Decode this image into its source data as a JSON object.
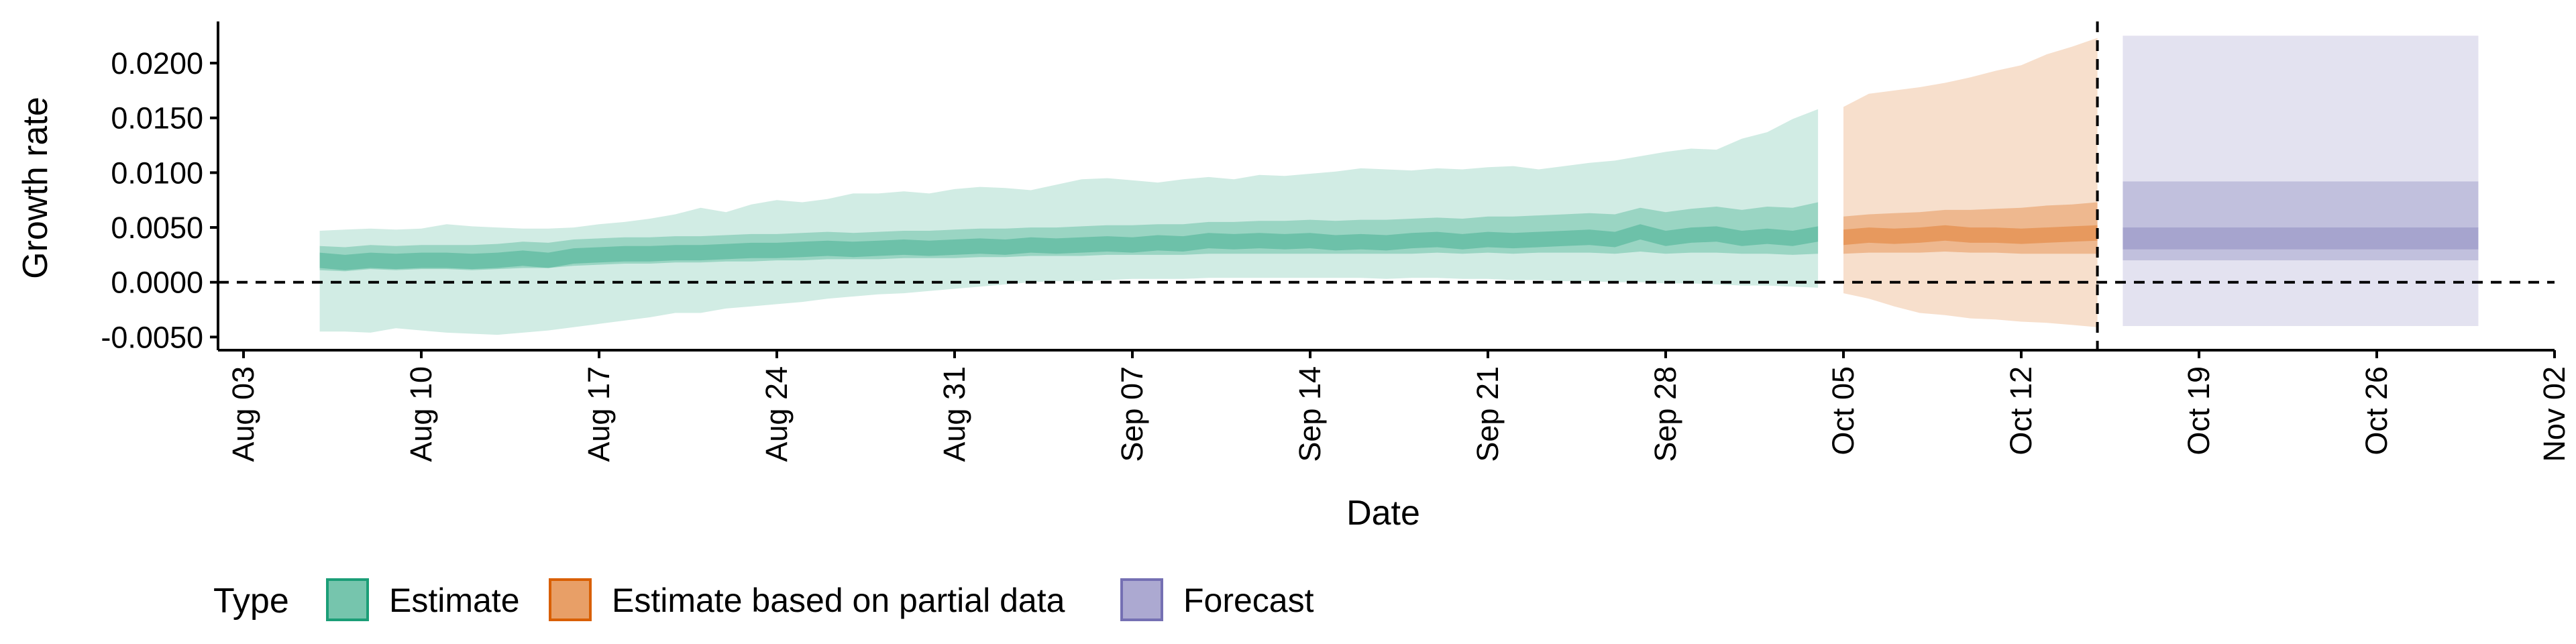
{
  "chart_data": {
    "type": "area",
    "title": "",
    "xlabel": "Date",
    "ylabel": "Growth rate",
    "x_ticks": [
      "Aug 03",
      "Aug 10",
      "Aug 17",
      "Aug 24",
      "Aug 31",
      "Sep 07",
      "Sep 14",
      "Sep 21",
      "Sep 28",
      "Oct 05",
      "Oct 12",
      "Oct 19",
      "Oct 26",
      "Nov 02"
    ],
    "y_ticks": [
      "-0.0050",
      "0.0000",
      "0.0050",
      "0.0100",
      "0.0150",
      "0.0200"
    ],
    "ylim": [
      -0.0062,
      0.0238
    ],
    "xlim": [
      "2020-08-03",
      "2020-11-02"
    ],
    "grid": false,
    "reference_lines": [
      {
        "axis": "y",
        "value": 0,
        "style": "dashed"
      },
      {
        "axis": "x",
        "value": "2020-10-15",
        "style": "dashed"
      }
    ],
    "legend": {
      "title": "Type",
      "position": "bottom",
      "entries": [
        "Estimate",
        "Estimate based on partial data",
        "Forecast"
      ]
    },
    "colors": {
      "Estimate": "#1b9e77",
      "Estimate based on partial data": "#d95f02",
      "Forecast": "#7570b3"
    },
    "series": [
      {
        "name": "Estimate",
        "dates": [
          "2020-08-06",
          "2020-08-07",
          "2020-08-08",
          "2020-08-09",
          "2020-08-10",
          "2020-08-11",
          "2020-08-12",
          "2020-08-13",
          "2020-08-14",
          "2020-08-15",
          "2020-08-16",
          "2020-08-17",
          "2020-08-18",
          "2020-08-19",
          "2020-08-20",
          "2020-08-21",
          "2020-08-22",
          "2020-08-23",
          "2020-08-24",
          "2020-08-25",
          "2020-08-26",
          "2020-08-27",
          "2020-08-28",
          "2020-08-29",
          "2020-08-30",
          "2020-08-31",
          "2020-09-01",
          "2020-09-02",
          "2020-09-03",
          "2020-09-04",
          "2020-09-05",
          "2020-09-06",
          "2020-09-07",
          "2020-09-08",
          "2020-09-09",
          "2020-09-10",
          "2020-09-11",
          "2020-09-12",
          "2020-09-13",
          "2020-09-14",
          "2020-09-15",
          "2020-09-16",
          "2020-09-17",
          "2020-09-18",
          "2020-09-19",
          "2020-09-20",
          "2020-09-21",
          "2020-09-22",
          "2020-09-23",
          "2020-09-24",
          "2020-09-25",
          "2020-09-26",
          "2020-09-27",
          "2020-09-28",
          "2020-09-29",
          "2020-09-30",
          "2020-10-01",
          "2020-10-02",
          "2020-10-03",
          "2020-10-04"
        ],
        "median": [
          0.002,
          0.0018,
          0.002,
          0.0019,
          0.002,
          0.002,
          0.0019,
          0.002,
          0.0022,
          0.002,
          0.0024,
          0.0025,
          0.0026,
          0.0026,
          0.0027,
          0.0027,
          0.0028,
          0.0029,
          0.0029,
          0.003,
          0.0031,
          0.003,
          0.0031,
          0.0032,
          0.0031,
          0.0032,
          0.0033,
          0.0032,
          0.0034,
          0.0033,
          0.0034,
          0.0035,
          0.0034,
          0.0036,
          0.0035,
          0.0038,
          0.0037,
          0.0038,
          0.0037,
          0.0038,
          0.0036,
          0.0037,
          0.0036,
          0.0038,
          0.0039,
          0.0037,
          0.0039,
          0.0038,
          0.0039,
          0.004,
          0.0041,
          0.0039,
          0.0046,
          0.004,
          0.0043,
          0.0044,
          0.004,
          0.0042,
          0.004,
          0.0044
        ],
        "lower_50": [
          0.0011,
          0.001,
          0.0012,
          0.0011,
          0.0012,
          0.0012,
          0.0011,
          0.0012,
          0.0013,
          0.0013,
          0.0015,
          0.0016,
          0.0017,
          0.0017,
          0.0018,
          0.0018,
          0.0019,
          0.0019,
          0.002,
          0.002,
          0.0021,
          0.0021,
          0.0021,
          0.0022,
          0.0022,
          0.0022,
          0.0023,
          0.0023,
          0.0024,
          0.0024,
          0.0024,
          0.0025,
          0.0025,
          0.0025,
          0.0025,
          0.0026,
          0.0026,
          0.0026,
          0.0026,
          0.0026,
          0.0026,
          0.0026,
          0.0026,
          0.0026,
          0.0027,
          0.0026,
          0.0027,
          0.0026,
          0.0027,
          0.0027,
          0.0027,
          0.0026,
          0.0028,
          0.0026,
          0.0027,
          0.0027,
          0.0026,
          0.0026,
          0.0025,
          0.0026
        ],
        "upper_50": [
          0.0033,
          0.0032,
          0.0034,
          0.0033,
          0.0034,
          0.0034,
          0.0034,
          0.0035,
          0.0037,
          0.0036,
          0.0039,
          0.004,
          0.0041,
          0.0041,
          0.0042,
          0.0042,
          0.0043,
          0.0044,
          0.0044,
          0.0045,
          0.0046,
          0.0045,
          0.0046,
          0.0047,
          0.0047,
          0.0048,
          0.0049,
          0.0049,
          0.005,
          0.005,
          0.0051,
          0.0052,
          0.0052,
          0.0053,
          0.0053,
          0.0055,
          0.0055,
          0.0056,
          0.0056,
          0.0057,
          0.0056,
          0.0057,
          0.0057,
          0.0058,
          0.0059,
          0.0058,
          0.006,
          0.006,
          0.0061,
          0.0062,
          0.0063,
          0.0062,
          0.0068,
          0.0064,
          0.0067,
          0.0069,
          0.0066,
          0.0069,
          0.0068,
          0.0073
        ],
        "lower_90": [
          -0.0045,
          -0.0045,
          -0.0046,
          -0.0042,
          -0.0044,
          -0.0046,
          -0.0047,
          -0.0048,
          -0.0046,
          -0.0044,
          -0.0041,
          -0.0038,
          -0.0035,
          -0.0032,
          -0.0028,
          -0.0028,
          -0.0024,
          -0.0022,
          -0.002,
          -0.0018,
          -0.0015,
          -0.0013,
          -0.0011,
          -0.001,
          -0.0008,
          -0.0006,
          -0.0004,
          -0.0002,
          0.0,
          0.0001,
          0.0001,
          0.0002,
          0.0003,
          0.0003,
          0.0003,
          0.0004,
          0.0004,
          0.0004,
          0.0004,
          0.0004,
          0.0004,
          0.0004,
          0.0003,
          0.0004,
          0.0004,
          0.0003,
          0.0003,
          0.0002,
          0.0002,
          0.0001,
          0.0001,
          0.0,
          0.0,
          -0.0001,
          -0.0001,
          -0.0002,
          -0.0003,
          -0.0003,
          -0.0004,
          -0.0005
        ],
        "upper_90": [
          0.0047,
          0.0048,
          0.0049,
          0.0048,
          0.0049,
          0.0053,
          0.0051,
          0.005,
          0.0049,
          0.0049,
          0.005,
          0.0053,
          0.0055,
          0.0058,
          0.0062,
          0.0068,
          0.0064,
          0.0071,
          0.0075,
          0.0073,
          0.0076,
          0.0081,
          0.0081,
          0.0083,
          0.0081,
          0.0085,
          0.0087,
          0.0086,
          0.0084,
          0.0089,
          0.0094,
          0.0095,
          0.0093,
          0.0091,
          0.0094,
          0.0096,
          0.0094,
          0.0098,
          0.0097,
          0.0099,
          0.0101,
          0.0104,
          0.0103,
          0.0102,
          0.0104,
          0.0103,
          0.0105,
          0.0106,
          0.0103,
          0.0106,
          0.0109,
          0.0111,
          0.0115,
          0.0119,
          0.0122,
          0.0121,
          0.0131,
          0.0137,
          0.0149,
          0.0158
        ]
      },
      {
        "name": "Estimate based on partial data",
        "dates": [
          "2020-10-05",
          "2020-10-06",
          "2020-10-07",
          "2020-10-08",
          "2020-10-09",
          "2020-10-10",
          "2020-10-11",
          "2020-10-12",
          "2020-10-13",
          "2020-10-14",
          "2020-10-15"
        ],
        "median": [
          0.0041,
          0.0043,
          0.0042,
          0.0043,
          0.0045,
          0.0043,
          0.0043,
          0.0042,
          0.0043,
          0.0044,
          0.0045
        ],
        "lower_50": [
          0.0026,
          0.0027,
          0.0027,
          0.0027,
          0.0028,
          0.0027,
          0.0027,
          0.0026,
          0.0026,
          0.0026,
          0.0026
        ],
        "upper_50": [
          0.006,
          0.0062,
          0.0063,
          0.0064,
          0.0066,
          0.0066,
          0.0067,
          0.0068,
          0.007,
          0.0071,
          0.0073
        ],
        "lower_90": [
          -0.001,
          -0.0015,
          -0.0022,
          -0.0028,
          -0.003,
          -0.0033,
          -0.0034,
          -0.0036,
          -0.0037,
          -0.0039,
          -0.0041
        ],
        "upper_90": [
          0.016,
          0.0172,
          0.0175,
          0.0178,
          0.0182,
          0.0187,
          0.0193,
          0.0198,
          0.0208,
          0.0215,
          0.0223
        ]
      },
      {
        "name": "Forecast",
        "dates": [
          "2020-10-16",
          "2020-10-30"
        ],
        "median": [
          0.004,
          0.004
        ],
        "lower_50": [
          0.0028,
          0.0028
        ],
        "upper_50": [
          0.0052,
          0.0052
        ],
        "lower_90": [
          -0.004,
          -0.004
        ],
        "upper_90": [
          0.0225,
          0.0225
        ],
        "lower_75": [
          0.002,
          0.002
        ],
        "upper_75": [
          0.0092,
          0.0092
        ]
      }
    ]
  }
}
